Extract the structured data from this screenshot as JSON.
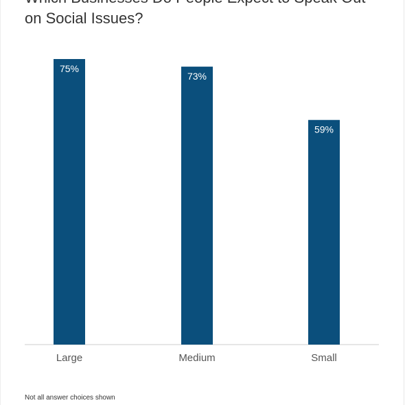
{
  "chart_data": {
    "type": "bar",
    "title": "Which Businesses Do People Expect to Speak Out\non Social Issues?",
    "categories": [
      "Large",
      "Medium",
      "Small"
    ],
    "values": [
      75,
      73,
      59
    ],
    "value_labels": [
      "75%",
      "73%",
      "59%"
    ],
    "ylim": [
      0,
      75
    ],
    "grid": false,
    "legend": "none",
    "bar_color": "#0b4f7c"
  },
  "footer": {
    "note": "Not all answer choices shown"
  }
}
